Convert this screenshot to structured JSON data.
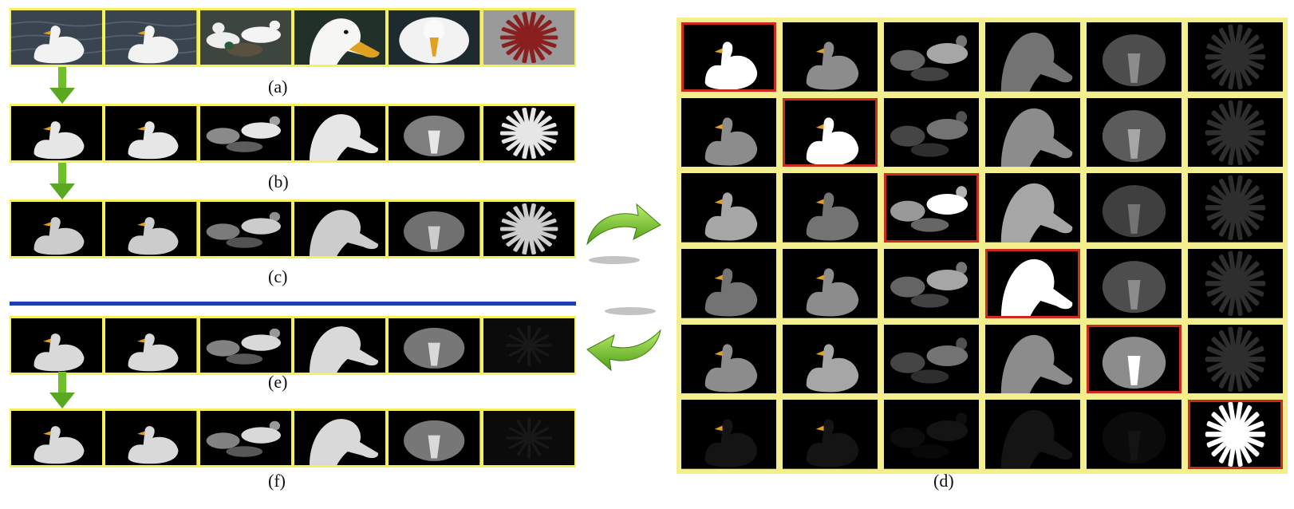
{
  "captions": {
    "a": "(a)",
    "b": "(b)",
    "c": "(c)",
    "d": "(d)",
    "e": "(e)",
    "f": "(f)"
  },
  "colors": {
    "frame": "#f6f05a",
    "grid_frame": "#f4ef8e",
    "highlight": "#cc2a1c",
    "divider": "#1d3db5",
    "arrow": "#6fbf2a",
    "water": "#3a4450",
    "duck": "#f2f2f2",
    "beak": "#e0a020",
    "sticks": "#8a1f1f"
  },
  "strips": {
    "a": [
      "duck-water",
      "duck-water",
      "ducks-group",
      "duck-head-closeup",
      "duck-front",
      "red-sticks"
    ],
    "b": [
      "mask-duck",
      "mask-duck",
      "mask-group",
      "mask-head",
      "mask-front",
      "mask-sticks"
    ],
    "c": [
      "mask-duck",
      "mask-duck",
      "mask-group",
      "mask-head",
      "mask-front",
      "mask-sticks"
    ],
    "e": [
      "mask-duck",
      "mask-duck",
      "mask-group",
      "mask-head",
      "mask-front",
      "mask-dark"
    ],
    "f": [
      "mask-duck",
      "mask-duck",
      "mask-group",
      "mask-head",
      "mask-front",
      "mask-dark"
    ]
  },
  "grid": {
    "rows": 6,
    "cols": 6,
    "highlight_diagonal": true
  }
}
